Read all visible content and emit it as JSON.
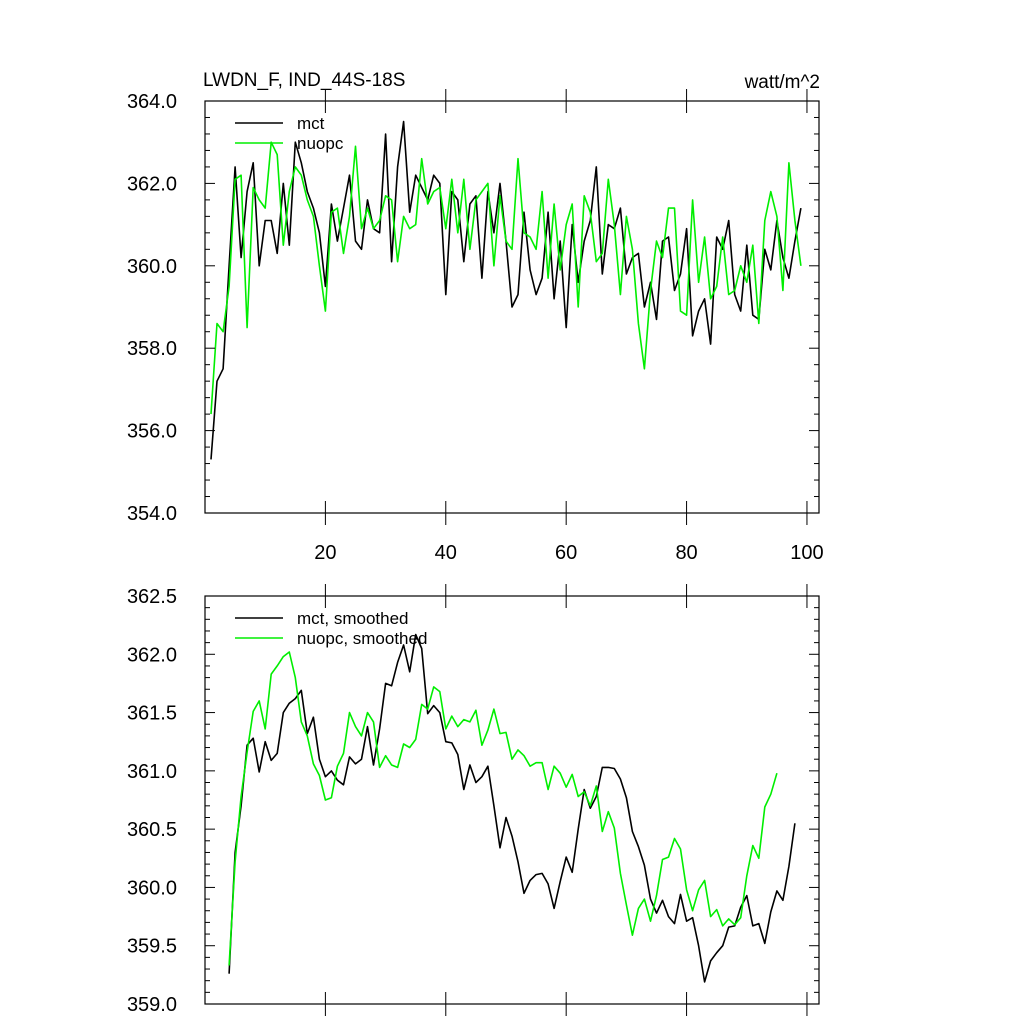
{
  "figure": {
    "title_left": "LWDN_F, IND_44S-18S",
    "title_right": "watt/m^2"
  },
  "chart_data": [
    {
      "type": "line",
      "title": "",
      "xlabel": "",
      "ylabel": "",
      "xlim": [
        0,
        102
      ],
      "ylim": [
        354.0,
        364.0
      ],
      "x_ticks": [
        20,
        40,
        60,
        80,
        100
      ],
      "x_tick_labels": [
        "20",
        "40",
        "60",
        "80",
        "100"
      ],
      "y_ticks": [
        354.0,
        356.0,
        358.0,
        360.0,
        362.0,
        364.0
      ],
      "y_tick_labels": [
        "354.0",
        "356.0",
        "358.0",
        "360.0",
        "362.0",
        "364.0"
      ],
      "legend_position": "top-left",
      "colors": {
        "mct": "#000000",
        "nuopc": "#00ee00"
      },
      "series": [
        {
          "name": "mct",
          "x_start": 1,
          "values": [
            355.3,
            357.2,
            357.5,
            360.0,
            362.4,
            360.2,
            361.8,
            362.5,
            360.0,
            361.1,
            361.1,
            360.3,
            362.0,
            360.5,
            363.0,
            362.5,
            361.8,
            361.4,
            360.8,
            359.5,
            361.5,
            360.6,
            361.4,
            362.2,
            360.6,
            360.4,
            361.6,
            360.9,
            360.8,
            363.2,
            360.1,
            362.4,
            363.5,
            361.3,
            362.2,
            361.9,
            361.6,
            362.2,
            362.0,
            359.3,
            361.8,
            361.6,
            360.1,
            361.5,
            361.7,
            359.7,
            361.8,
            360.8,
            362.0,
            360.6,
            359.0,
            359.3,
            361.3,
            359.9,
            359.3,
            359.7,
            361.3,
            359.2,
            360.6,
            358.5,
            361.0,
            359.6,
            360.6,
            361.1,
            362.4,
            359.8,
            361.0,
            360.9,
            361.4,
            359.8,
            360.2,
            360.3,
            359.0,
            359.6,
            358.7,
            360.6,
            360.7,
            359.4,
            359.8,
            360.9,
            358.3,
            358.9,
            359.2,
            358.1,
            360.7,
            360.4,
            361.1,
            359.3,
            358.9,
            360.5,
            358.8,
            358.7,
            360.4,
            359.9,
            361.1,
            360.2,
            359.7,
            360.6,
            361.4
          ]
        },
        {
          "name": "nuopc",
          "x_start": 1,
          "values": [
            356.4,
            358.6,
            358.4,
            359.5,
            362.1,
            362.2,
            358.5,
            361.9,
            361.6,
            361.4,
            363.0,
            362.7,
            360.5,
            361.8,
            362.4,
            362.2,
            361.6,
            361.2,
            360.0,
            358.9,
            361.3,
            361.4,
            360.3,
            361.2,
            362.9,
            360.9,
            361.4,
            360.9,
            361.1,
            361.7,
            361.6,
            360.1,
            361.2,
            360.9,
            361.0,
            362.6,
            361.5,
            361.8,
            361.9,
            360.9,
            362.1,
            360.8,
            362.1,
            360.4,
            361.6,
            361.8,
            362.0,
            360.0,
            361.7,
            360.6,
            360.4,
            362.6,
            360.8,
            360.7,
            360.4,
            361.8,
            359.7,
            361.5,
            359.9,
            361.0,
            361.5,
            359.0,
            361.7,
            361.3,
            360.1,
            360.3,
            362.1,
            361.0,
            359.3,
            361.2,
            360.4,
            358.6,
            357.5,
            359.4,
            360.6,
            360.2,
            361.4,
            361.4,
            358.9,
            358.8,
            361.6,
            359.6,
            360.7,
            359.2,
            359.5,
            360.7,
            359.3,
            359.4,
            360.0,
            359.6,
            360.5,
            358.6,
            361.1,
            361.8,
            361.2,
            359.4,
            362.5,
            361.1,
            360.0
          ]
        }
      ],
      "legend": [
        "mct",
        "nuopc"
      ]
    },
    {
      "type": "line",
      "title": "",
      "xlabel": "",
      "ylabel": "",
      "xlim": [
        0,
        102
      ],
      "ylim": [
        359.0,
        362.5
      ],
      "x_ticks": [
        20,
        40,
        60,
        80,
        100
      ],
      "x_tick_labels": [],
      "y_ticks": [
        359.0,
        359.5,
        360.0,
        360.5,
        361.0,
        361.5,
        362.0,
        362.5
      ],
      "y_tick_labels": [
        "359.0",
        "359.5",
        "360.0",
        "360.5",
        "361.0",
        "361.5",
        "362.0",
        "362.5"
      ],
      "legend_position": "top-left",
      "colors": {
        "mct, smoothed": "#000000",
        "nuopc, smoothed": "#00ee00"
      },
      "series": [
        {
          "name": "mct, smoothed",
          "x_start": 4,
          "values": [
            359.26,
            360.3,
            360.7,
            361.22,
            361.28,
            360.99,
            361.25,
            361.09,
            361.15,
            361.5,
            361.58,
            361.62,
            361.69,
            361.32,
            361.46,
            361.1,
            360.95,
            361.0,
            360.92,
            360.88,
            361.12,
            361.06,
            361.1,
            361.38,
            361.05,
            361.36,
            361.75,
            361.73,
            361.93,
            362.08,
            361.85,
            362.17,
            362.05,
            361.49,
            361.56,
            361.5,
            361.25,
            361.24,
            361.14,
            360.84,
            361.05,
            360.9,
            360.95,
            361.04,
            360.7,
            360.34,
            360.6,
            360.44,
            360.22,
            359.95,
            360.06,
            360.11,
            360.12,
            360.03,
            359.82,
            360.05,
            360.26,
            360.13,
            360.5,
            360.84,
            360.68,
            360.78,
            361.03,
            361.03,
            361.02,
            360.93,
            360.77,
            360.48,
            360.35,
            360.19,
            359.9,
            359.78,
            359.89,
            359.75,
            359.69,
            359.94,
            359.71,
            359.74,
            359.5,
            359.19,
            359.37,
            359.44,
            359.5,
            359.66,
            359.67,
            359.83,
            359.93,
            359.67,
            359.69,
            359.52,
            359.79,
            359.97,
            359.89,
            360.18,
            360.55
          ]
        },
        {
          "name": "nuopc, smoothed",
          "x_start": 4,
          "values": [
            359.33,
            360.22,
            360.78,
            361.16,
            361.51,
            361.6,
            361.36,
            361.83,
            361.9,
            361.98,
            362.02,
            361.8,
            361.42,
            361.3,
            361.06,
            360.96,
            360.75,
            360.77,
            361.04,
            361.15,
            361.5,
            361.38,
            361.3,
            361.5,
            361.42,
            361.03,
            361.13,
            361.05,
            361.03,
            361.23,
            361.2,
            361.27,
            361.57,
            361.53,
            361.72,
            361.68,
            361.36,
            361.47,
            361.38,
            361.44,
            361.42,
            361.52,
            361.22,
            361.35,
            361.53,
            361.32,
            361.33,
            361.1,
            361.18,
            361.13,
            361.04,
            361.07,
            361.07,
            360.84,
            361.04,
            360.98,
            360.86,
            360.97,
            360.78,
            360.82,
            360.7,
            360.87,
            360.48,
            360.65,
            360.51,
            360.12,
            359.85,
            359.59,
            359.82,
            359.9,
            359.71,
            359.93,
            360.24,
            360.26,
            360.42,
            360.33,
            359.98,
            359.8,
            359.98,
            360.06,
            359.75,
            359.81,
            359.67,
            359.73,
            359.68,
            359.74,
            360.1,
            360.36,
            360.25,
            360.69,
            360.8,
            360.98
          ]
        }
      ],
      "legend": [
        "mct, smoothed",
        "nuopc, smoothed"
      ]
    }
  ]
}
